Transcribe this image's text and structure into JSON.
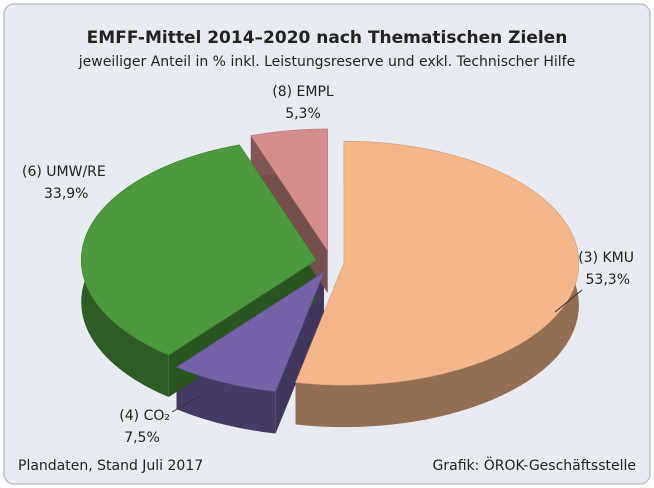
{
  "chart_data": {
    "type": "pie",
    "title": "EMFF-Mittel 2014–2020 nach Thematischen Zielen",
    "subtitle": "jeweiliger Anteil in % inkl. Leistungsreserve und exkl. Technischer Hilfe",
    "categories": [
      "(3) KMU",
      "(4) CO₂",
      "(6) UMW/RE",
      "(8) EMPL"
    ],
    "values": [
      53.3,
      7.5,
      33.9,
      5.3
    ],
    "value_labels": [
      "53,3%",
      "7,5%",
      "33,9%",
      "5,3%"
    ],
    "colors": [
      "#f5b78a",
      "#7562a8",
      "#4c9a3c",
      "#d48e8e"
    ],
    "source": "Plandaten, Stand Juli 2017",
    "credit": "Grafik: ÖROK-Geschäftsstelle"
  }
}
